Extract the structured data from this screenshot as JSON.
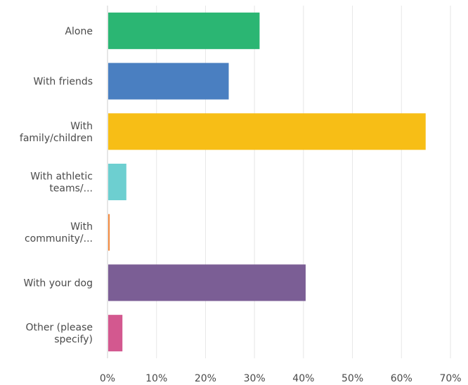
{
  "chart_data": {
    "type": "bar",
    "orientation": "horizontal",
    "title": "",
    "xlabel": "",
    "ylabel": "",
    "xlim": [
      0,
      70
    ],
    "x_tick_values": [
      0,
      10,
      20,
      30,
      40,
      50,
      60,
      70
    ],
    "x_tick_labels": [
      "0%",
      "10%",
      "20%",
      "30%",
      "40%",
      "50%",
      "60%",
      "70%"
    ],
    "grid": true,
    "legend": "none",
    "categories": [
      [
        "Alone"
      ],
      [
        "With friends"
      ],
      [
        "With",
        "family/children"
      ],
      [
        "With athletic",
        "teams/..."
      ],
      [
        "With",
        "community/..."
      ],
      [
        "With your dog"
      ],
      [
        "Other (please",
        "specify)"
      ]
    ],
    "values": [
      30.9,
      24.6,
      64.8,
      3.7,
      0.3,
      40.3,
      2.9
    ],
    "colors": [
      "#2bb673",
      "#4a7fc1",
      "#f7be16",
      "#6dcfd0",
      "#f28a40",
      "#7b5e95",
      "#d3588f"
    ]
  }
}
